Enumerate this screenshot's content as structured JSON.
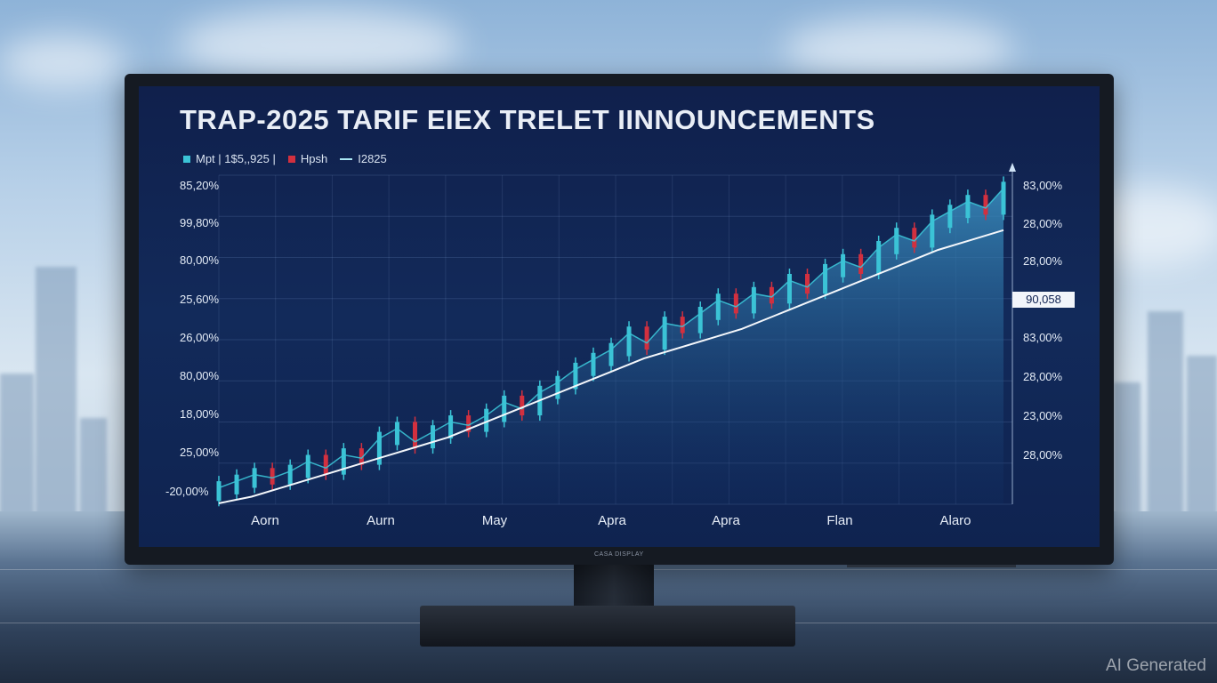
{
  "scene": {
    "watermark": "AI Generated",
    "monitor_brand": "CASA DISPLAY"
  },
  "screen": {
    "title": "TRAP-2025 TARIF EIEX TRELET IINNOUNCEMENTS",
    "legend": [
      {
        "label": "Mpt | 1$5,,925 |",
        "color": "#3bc3d6",
        "kind": "square"
      },
      {
        "label": "Hpsh",
        "color": "#d2303f",
        "kind": "square"
      },
      {
        "label": "I2825",
        "color": "#a9e6f2",
        "kind": "line"
      }
    ],
    "badge": "90,058",
    "colors": {
      "up": "#3bc3d6",
      "down": "#d2303f",
      "trend": "#f4f7fb",
      "area_top": "#3a8fc0"
    }
  },
  "chart_data": {
    "type": "line",
    "title": "TRAP-2025 TARIF EIEX TRELET IINNOUNCEMENTS",
    "y_labels_left": [
      "85,20%",
      "99,80%",
      "80,00%",
      "25,60%",
      "26,00%",
      "80,00%",
      "18,00%",
      "25,00%",
      "-20,00%"
    ],
    "y_labels_right": [
      "83,00%",
      "28,00%",
      "28,00%",
      "83,00%",
      "28,00%",
      "23,00%",
      "28,00%"
    ],
    "x_labels": [
      "Aorn",
      "Aurn",
      "May",
      "Apra",
      "Apra",
      "Flan",
      "Alaro"
    ],
    "series": [
      {
        "name": "Mpt | 1$5,,925 |",
        "values": [
          5,
          7,
          9,
          8,
          10,
          13,
          11,
          15,
          14,
          20,
          23,
          19,
          22,
          25,
          24,
          27,
          31,
          29,
          34,
          37,
          41,
          44,
          47,
          52,
          49,
          55,
          54,
          58,
          62,
          60,
          64,
          63,
          68,
          66,
          71,
          74,
          72,
          78,
          82,
          80,
          86,
          89,
          92,
          90,
          96
        ]
      },
      {
        "name": "I2825",
        "values": [
          3,
          5,
          8,
          11,
          14,
          17,
          20,
          23,
          27,
          31,
          35,
          39,
          43,
          47,
          50,
          53,
          56,
          60,
          64,
          68,
          72,
          76,
          80,
          83,
          86
        ]
      }
    ]
  }
}
